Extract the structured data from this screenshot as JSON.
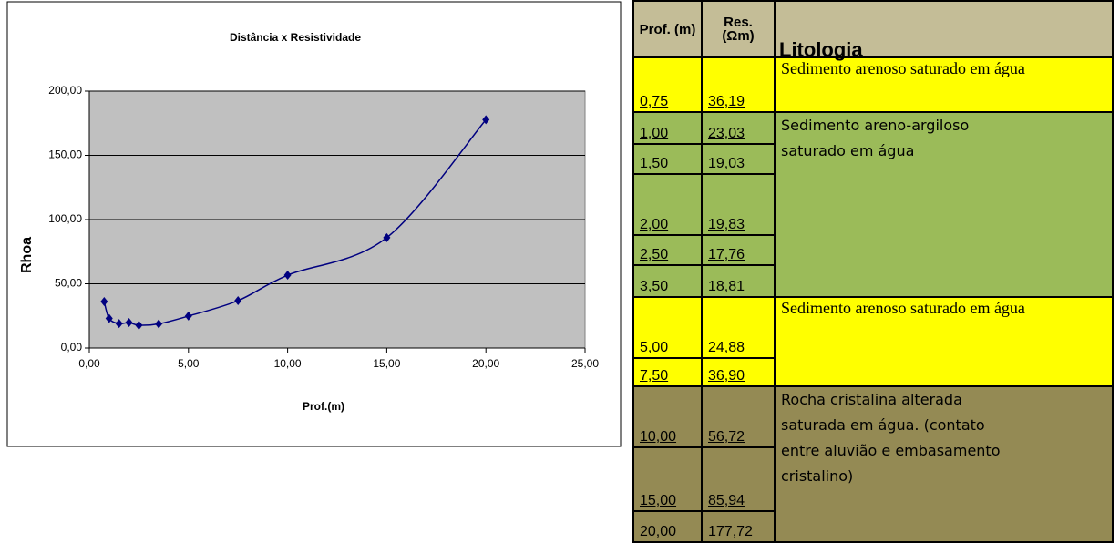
{
  "chart_data": {
    "type": "line",
    "title": "Distância x Resistividade",
    "x_label": "Prof.(m)",
    "y_label": "Rhoa",
    "x": [
      0.75,
      1.0,
      1.5,
      2.0,
      2.5,
      3.5,
      5.0,
      7.5,
      10.0,
      15.0,
      20.0
    ],
    "series": [
      {
        "name": "Rhoa",
        "color": "#000080",
        "values": [
          36.19,
          23.03,
          19.03,
          19.83,
          17.76,
          18.81,
          24.88,
          36.9,
          56.72,
          85.94,
          177.72
        ]
      }
    ],
    "xlim": [
      0,
      25
    ],
    "ylim": [
      0,
      200
    ],
    "xticks": [
      {
        "value": 0,
        "label": "0,00"
      },
      {
        "value": 5,
        "label": "5,00"
      },
      {
        "value": 10,
        "label": "10,00"
      },
      {
        "value": 15,
        "label": "15,00"
      },
      {
        "value": 20,
        "label": "20,00"
      },
      {
        "value": 25,
        "label": "25,00"
      }
    ],
    "yticks": [
      {
        "value": 0,
        "label": "0,00"
      },
      {
        "value": 50,
        "label": "50,00"
      },
      {
        "value": 100,
        "label": "100,00"
      },
      {
        "value": 150,
        "label": "150,00"
      },
      {
        "value": 200,
        "label": "200,00"
      }
    ],
    "grid": true,
    "plot_background": "#c0c0c0"
  },
  "table": {
    "header": [
      "Prof. (m)",
      "Res. (Ωm)",
      "Litologia"
    ],
    "rows": [
      [
        "0,75",
        "36,19"
      ],
      [
        "1,00",
        "23,03"
      ],
      [
        "1,50",
        "19,03"
      ],
      [
        "2,00",
        "19,83"
      ],
      [
        "2,50",
        "17,76"
      ],
      [
        "3,50",
        "18,81"
      ],
      [
        "5,00",
        "24,88"
      ],
      [
        "7,50",
        "36,90"
      ],
      [
        "10,00",
        "56,72"
      ],
      [
        "15,00",
        "85,94"
      ],
      [
        "20,00",
        "177,72"
      ]
    ],
    "lithology": [
      "Sedimento arenoso saturado em água",
      "Sedimento areno-argiloso saturado em água",
      "Sedimento arenoso saturado em água",
      "Rocha cristalina alterada saturada em água. (contato entre aluvião e embasamento cristalino)"
    ]
  }
}
